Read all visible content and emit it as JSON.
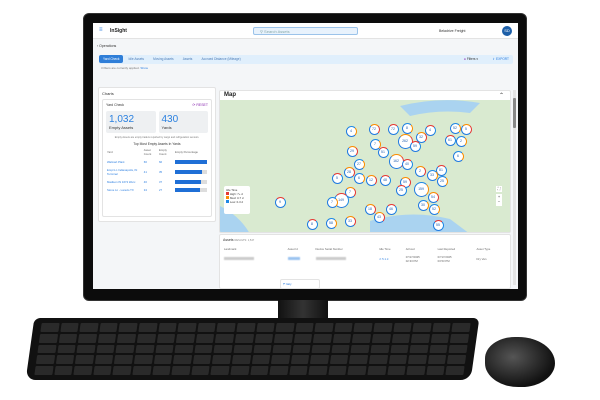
{
  "app": {
    "name": "InSight",
    "search_placeholder": "Search Assets",
    "user_name": "Beladrive Freight",
    "avatar_initials": "SD",
    "breadcrumb": "Operations"
  },
  "tabs": [
    {
      "label": "Yard Check",
      "active": true
    },
    {
      "label": "Idle Assets"
    },
    {
      "label": "Moving Assets"
    },
    {
      "label": "Assets"
    },
    {
      "label": "Accrued Distance (Mileage)"
    }
  ],
  "toolbar": {
    "filters_label": "Filters",
    "export_label": "EXPORT",
    "filters_note": "3 filters are currently applied.",
    "show_link": "Show"
  },
  "charts": {
    "title": "Charts",
    "yard_check_title": "Yard Check",
    "reset_label": "RESET",
    "empty_assets_value": "1,032",
    "empty_assets_label": "Empty Assets",
    "yards_value": "430",
    "yards_label": "Yards",
    "note": "Empty Assets are empty trailers reported by cargo and refrigeration sensors.",
    "table_title": "Top Most Empty Assets In Yards",
    "columns": [
      "Yard",
      "Asset Count",
      "Empty Count",
      "Empty Percentage"
    ],
    "rows": [
      {
        "yard": "Walmart Plant",
        "asset": "66",
        "empty": "66",
        "pct": 100
      },
      {
        "yard": "Empl Ln Indianapolis, IN Terminal",
        "asset": "41",
        "empty": "35",
        "pct": 85
      },
      {
        "yard": "Madison IN 1672 Werx",
        "asset": "46",
        "empty": "37",
        "pct": 80
      },
      {
        "yard": "Stone Ln - Laredo TX",
        "asset": "34",
        "empty": "27",
        "pct": 79
      }
    ]
  },
  "map": {
    "title": "Map",
    "legend_title": "Idle Time",
    "legend": [
      {
        "label": "High: 7+ d",
        "color": "#e53935"
      },
      {
        "label": "Med: 3-7 d",
        "color": "#fb8c00"
      },
      {
        "label": "Low: 0-3 d",
        "color": "#1e88e5"
      }
    ],
    "clusters": [
      "4",
      "72",
      "72",
      "8",
      "32",
      "4",
      "52",
      "5",
      "61",
      "2",
      "262",
      "59",
      "7",
      "29",
      "51",
      "6",
      "162",
      "40",
      "27",
      "2",
      "81",
      "33",
      "28",
      "5",
      "6",
      "12",
      "48",
      "25",
      "59",
      "25",
      "159",
      "7",
      "149",
      "7",
      "54",
      "9",
      "30",
      "18",
      "46",
      "52",
      "43",
      "8",
      "58",
      "33",
      "55",
      "58"
    ]
  },
  "assets": {
    "title": "Assets",
    "results": "RESULTS: 1,547",
    "columns": [
      "Landmark",
      "Asset Id",
      "Device Serial Number",
      "Idle Time",
      "Arrived",
      "Last Reported",
      "Asset Type"
    ],
    "row": {
      "idle": "5.1 d",
      "arrived_date": "07/17/2025",
      "arrived_time": "02:33 PM",
      "reported_date": "07/17/2025",
      "reported_time": "03:53 PM",
      "type": "Dry Van"
    },
    "tooltip": "Italy"
  }
}
